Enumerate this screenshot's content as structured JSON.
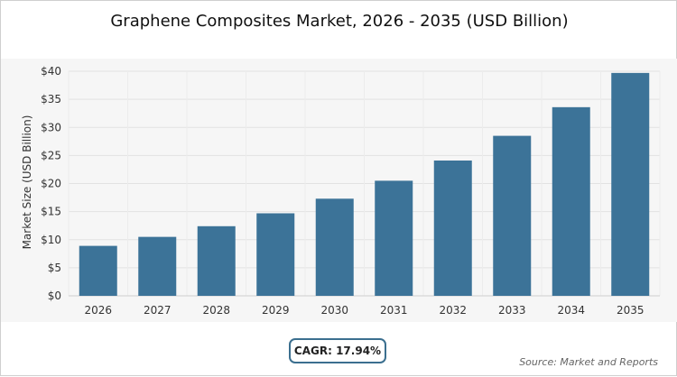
{
  "chart_data": {
    "type": "bar",
    "title": "Graphene Composites Market, 2026 - 2035 (USD Billion)",
    "ylabel": "Market Size (USD Billion)",
    "xlabel": "",
    "categories": [
      "2026",
      "2027",
      "2028",
      "2029",
      "2030",
      "2031",
      "2032",
      "2033",
      "2034",
      "2035"
    ],
    "values": [
      8.9,
      10.5,
      12.4,
      14.7,
      17.3,
      20.5,
      24.1,
      28.5,
      33.6,
      39.7
    ],
    "ylim": [
      0,
      40
    ],
    "yticks": [
      0,
      5,
      10,
      15,
      20,
      25,
      30,
      35,
      40
    ],
    "ytick_labels": [
      "$0",
      "$5",
      "$10",
      "$15",
      "$20",
      "$25",
      "$30",
      "$35",
      "$40"
    ],
    "bar_color": "#3c7398",
    "grid": true,
    "legend": "none"
  },
  "cagr_label": "CAGR: 17.94%",
  "source_label": "Source: Market and Reports"
}
